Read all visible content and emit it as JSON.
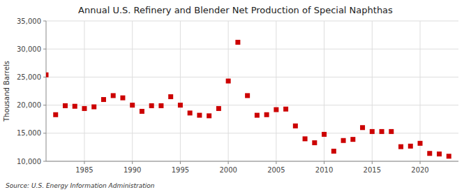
{
  "chart_data": {
    "type": "scatter",
    "title": "Annual U.S. Refinery and Blender Net Production of Special Naphthas",
    "y_label": "Thousand Barrels",
    "source": "Source: U.S. Energy Information Administration",
    "x": [
      1981,
      1982,
      1983,
      1984,
      1985,
      1986,
      1987,
      1988,
      1989,
      1990,
      1991,
      1992,
      1993,
      1994,
      1995,
      1996,
      1997,
      1998,
      1999,
      2000,
      2001,
      2002,
      2003,
      2004,
      2005,
      2006,
      2007,
      2008,
      2009,
      2010,
      2011,
      2012,
      2013,
      2014,
      2015,
      2016,
      2017,
      2018,
      2019,
      2020,
      2021,
      2022,
      2023
    ],
    "values": [
      25400,
      18300,
      19900,
      19800,
      19400,
      19700,
      21000,
      21700,
      21300,
      20000,
      18900,
      19900,
      19900,
      21500,
      20000,
      18600,
      18200,
      18100,
      19400,
      24300,
      31200,
      21700,
      18200,
      18300,
      19200,
      19300,
      16300,
      14000,
      13300,
      14800,
      11800,
      13700,
      13900,
      16000,
      15300,
      15300,
      15300,
      12600,
      12700,
      13200,
      11400,
      11300,
      10900
    ],
    "color": "#cc0000",
    "marker": "square",
    "xlim": [
      1981,
      2024
    ],
    "xticks": [
      1985,
      1990,
      1995,
      2000,
      2005,
      2010,
      2015,
      2020
    ],
    "ylim": [
      10000,
      35000
    ],
    "yticks": [
      {
        "value": 10000,
        "label": "10,000"
      },
      {
        "value": 15000,
        "label": "15,000"
      },
      {
        "value": 20000,
        "label": "20,000"
      },
      {
        "value": 25000,
        "label": "25,000"
      },
      {
        "value": 30000,
        "label": "30,000"
      },
      {
        "value": 35000,
        "label": "35,000"
      }
    ],
    "grid": true
  }
}
